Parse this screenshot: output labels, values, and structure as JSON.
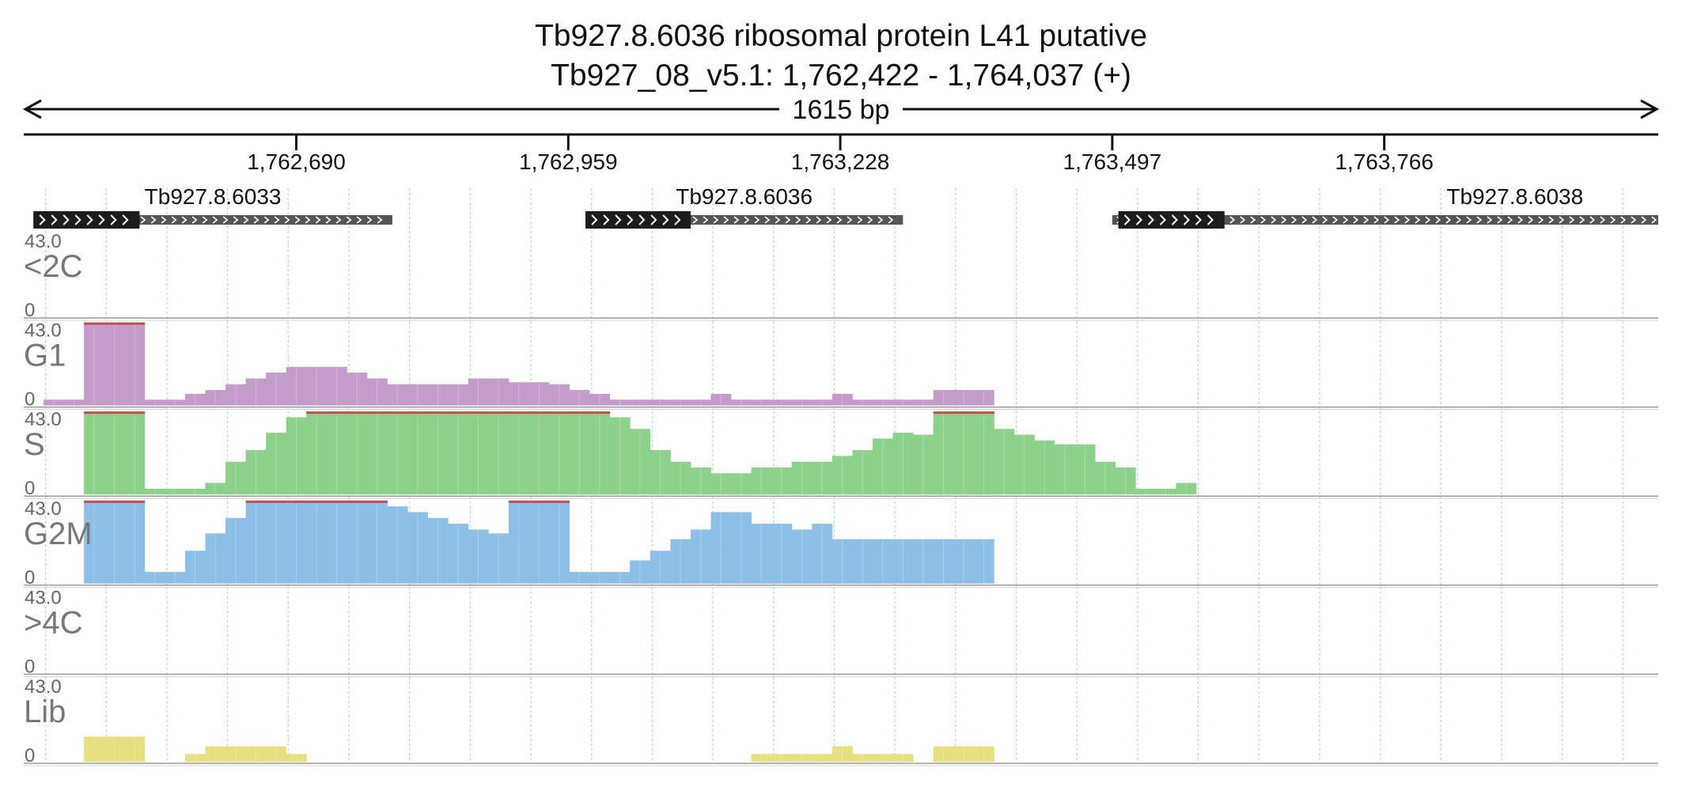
{
  "title": {
    "line1": "Tb927.8.6036  ribosomal protein L41  putative",
    "line2": "Tb927_08_v5.1: 1,762,422 - 1,764,037 (+)",
    "span_label": "1615 bp"
  },
  "chart_data": {
    "type": "coverage-tracks",
    "x_range": [
      1762422,
      1764037
    ],
    "x_ticks": [
      1762690,
      1762959,
      1763228,
      1763497,
      1763766
    ],
    "x_tick_labels": [
      "1,762,690",
      "1,762,959",
      "1,763,228",
      "1,763,497",
      "1,763,766"
    ],
    "bin_size": 20,
    "genes": [
      {
        "name": "Tb927.8.6033",
        "start": 1762430,
        "end": 1762785,
        "cds_start": 1762430,
        "cds_end": 1762535,
        "strand": "+"
      },
      {
        "name": "Tb927.8.6036",
        "start": 1762976,
        "end": 1763290,
        "cds_start": 1762976,
        "cds_end": 1763080,
        "strand": "+"
      },
      {
        "name": "Tb927.8.6038",
        "start": 1763497,
        "end": 1764037,
        "cds_start": 1763503,
        "cds_end": 1763608,
        "strand": "+"
      }
    ],
    "tracks": [
      {
        "name": "<2C",
        "ymax": "43.0",
        "ymin": "0",
        "color": "#c59bcc",
        "segments": []
      },
      {
        "name": "G1",
        "ymax": "43.0",
        "ymin": "0",
        "color": "#c59bcc",
        "segments": [
          {
            "start": 1762440,
            "values": [
              3,
              3,
              43,
              43,
              43,
              3,
              3,
              6,
              8,
              11,
              14,
              17,
              20,
              20,
              20,
              17,
              14,
              11,
              11,
              11,
              11,
              14,
              14,
              12,
              12,
              11,
              8,
              6,
              3
            ]
          },
          {
            "start": 1763020,
            "values": [
              3,
              3,
              3,
              3,
              6,
              3,
              3,
              3,
              3,
              3,
              6,
              3,
              3,
              3,
              3
            ]
          },
          {
            "start": 1763320,
            "values": [
              8,
              8,
              8
            ]
          }
        ]
      },
      {
        "name": "S",
        "ymax": "43.0",
        "ymin": "0",
        "color": "#8ed18b",
        "segments": [
          {
            "start": 1762480,
            "values": [
              43,
              43,
              43,
              3,
              3,
              3,
              6,
              17,
              23,
              32,
              40,
              43,
              43,
              43,
              43,
              43,
              43,
              43,
              43,
              43,
              43,
              43,
              43,
              43,
              43,
              43,
              40,
              34,
              23,
              17,
              14,
              11,
              11,
              14,
              11,
              8,
              8,
              8,
              8,
              8,
              8,
              6,
              3
            ]
          },
          {
            "start": 1762960,
            "values": [
              3,
              3,
              3,
              3,
              3,
              3,
              3,
              3,
              3
            ]
          },
          {
            "start": 1763120,
            "values": [
              8,
              11,
              14,
              17,
              17,
              20,
              23,
              29,
              32,
              31,
              37,
              43,
              40,
              34,
              31,
              28,
              26,
              26,
              17,
              14,
              3,
              3,
              6
            ]
          },
          {
            "start": 1763320,
            "values": [
              43,
              43,
              43
            ]
          }
        ]
      },
      {
        "name": "G2M",
        "ymax": "43.0",
        "ymin": "0",
        "color": "#8ebfe6",
        "segments": [
          {
            "start": 1762480,
            "values": [
              43,
              43,
              43,
              6,
              6,
              17,
              26,
              34,
              43,
              43,
              43,
              43,
              43,
              43,
              43,
              40,
              37,
              34,
              31,
              28,
              26,
              43,
              43,
              43,
              6,
              6,
              6,
              11,
              17,
              23,
              28,
              37,
              37,
              31,
              31,
              28,
              31,
              23,
              17,
              6,
              6,
              6,
              6
            ]
          },
          {
            "start": 1763020,
            "values": [
              12,
              12,
              12,
              12,
              17,
              17,
              17,
              12,
              12,
              6,
              6
            ]
          },
          {
            "start": 1763160,
            "values": [
              6,
              6,
              6
            ]
          },
          {
            "start": 1763220,
            "values": [
              17,
              23,
              23,
              23,
              23,
              20,
              6
            ]
          },
          {
            "start": 1763320,
            "values": [
              23,
              23,
              23
            ]
          }
        ]
      },
      {
        "name": ">4C",
        "ymax": "43.0",
        "ymin": "0",
        "color": "#8ebfe6",
        "segments": []
      },
      {
        "name": "Lib",
        "ymax": "43.0",
        "ymin": "0",
        "color": "#e8df80",
        "segments": [
          {
            "start": 1762480,
            "values": [
              13,
              13,
              13
            ]
          },
          {
            "start": 1762580,
            "values": [
              4,
              8,
              8,
              8,
              8
            ]
          },
          {
            "start": 1762680,
            "values": [
              4
            ]
          },
          {
            "start": 1763140,
            "values": [
              4,
              4,
              4,
              4,
              8,
              4,
              4,
              4
            ]
          },
          {
            "start": 1763320,
            "values": [
              8,
              8,
              8
            ]
          }
        ]
      }
    ]
  }
}
